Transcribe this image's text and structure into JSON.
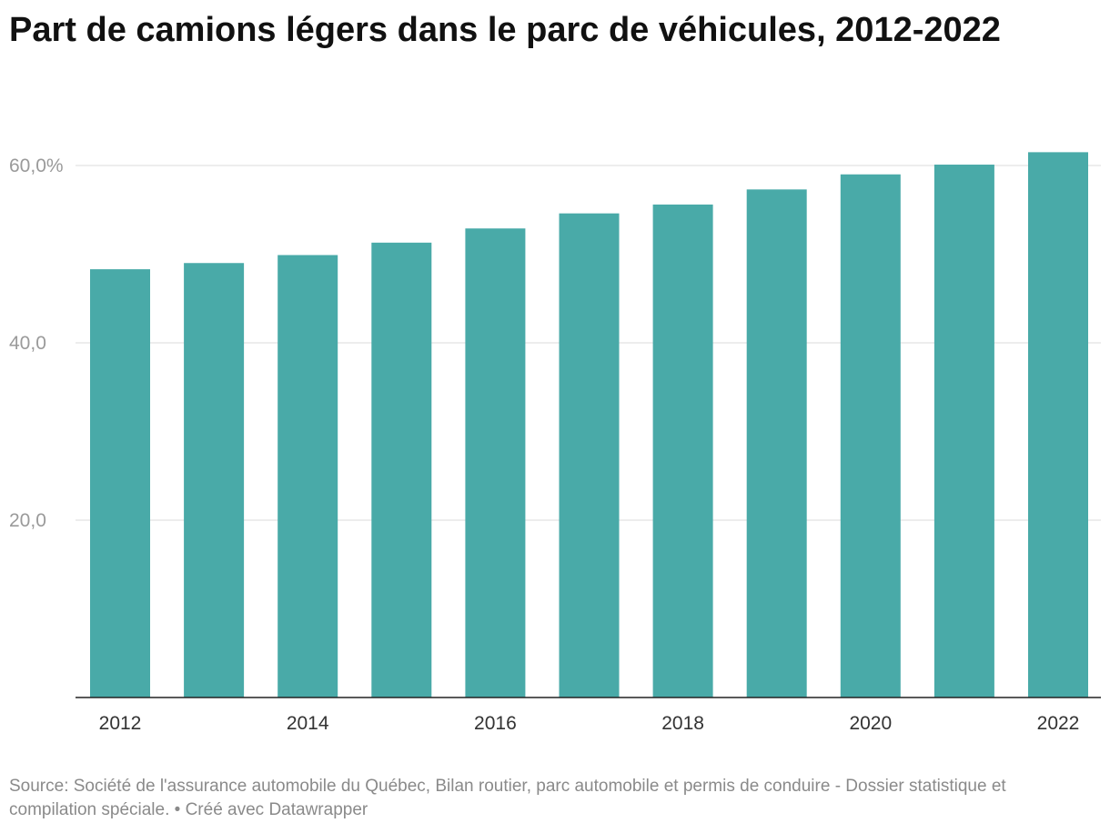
{
  "title": "Part de camions légers dans le parc de véhicules, 2012-2022",
  "source": "Source: Société de l'assurance automobile du Québec, Bilan routier, parc automobile et permis de conduire - Dossier statistique et compilation spéciale. • Créé avec Datawrapper",
  "colors": {
    "bar": "#49aaa8",
    "grid": "#e2e2e2",
    "axis": "#222222"
  },
  "chart_data": {
    "type": "bar",
    "categories": [
      "2012",
      "2013",
      "2014",
      "2015",
      "2016",
      "2017",
      "2018",
      "2019",
      "2020",
      "2021",
      "2022"
    ],
    "values": [
      48.3,
      49.0,
      49.9,
      51.3,
      52.9,
      54.6,
      55.6,
      57.3,
      59.0,
      60.1,
      61.5
    ],
    "x_tick_labels": [
      "2012",
      "",
      "2014",
      "",
      "2016",
      "",
      "2018",
      "",
      "2020",
      "",
      "2022"
    ],
    "y_ticks": [
      {
        "value": 20,
        "label": "20,0"
      },
      {
        "value": 40,
        "label": "40,0"
      },
      {
        "value": 60,
        "label": "60,0%"
      }
    ],
    "ylim": [
      0,
      60
    ],
    "xlabel": "",
    "ylabel": "",
    "grid": true,
    "legend": "none"
  }
}
